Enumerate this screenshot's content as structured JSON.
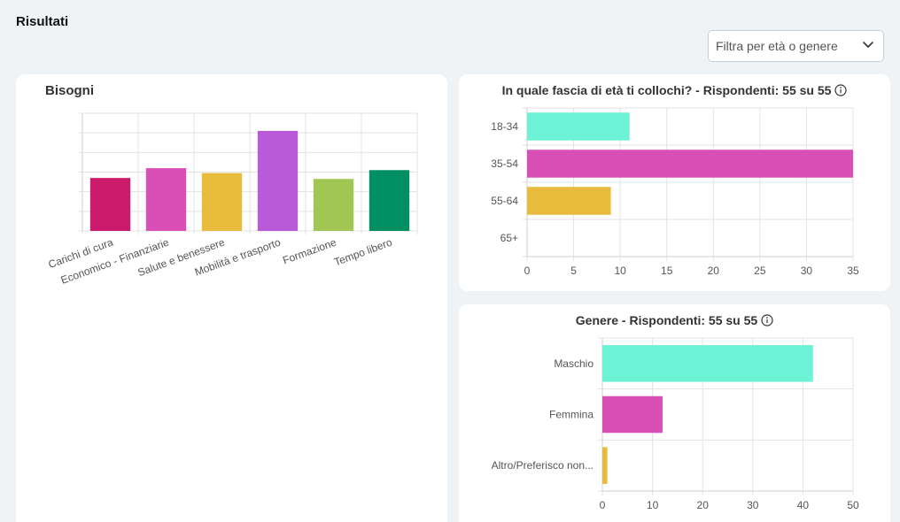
{
  "page": {
    "title": "Risultati"
  },
  "filter": {
    "placeholder": "Filtra per età o genere",
    "icon": "chevron-down-icon"
  },
  "colors": {
    "crimson": "#cc1a6c",
    "pink": "#d94fb5",
    "yellow": "#e9bb3d",
    "purple": "#b85ad9",
    "lime": "#a1c653",
    "green": "#008f60",
    "aqua": "#6cf2d4",
    "magenta": "#d94fb5"
  },
  "needs_card": {
    "title": "Bisogni"
  },
  "age_card": {
    "title": "In quale fascia di età ti collochi? - Rispondenti: 55 su 55",
    "icon": "info-icon"
  },
  "gender_card": {
    "title": "Genere - Rispondenti: 55 su 55",
    "icon": "info-icon"
  },
  "chart_data": [
    {
      "type": "bar",
      "title": "Bisogni",
      "categories": [
        "Carichi di cura",
        "Economico - Finanziarie",
        "Salute e benessere",
        "Mobilità e trasporto",
        "Formazione",
        "Tempo libero"
      ],
      "values": [
        27,
        32,
        29.5,
        51,
        26.5,
        31
      ],
      "ylim": [
        0,
        60
      ],
      "y_tick_labels_shown": false,
      "grid": true,
      "bar_colors": [
        "#cc1a6c",
        "#d94fb5",
        "#e9bb3d",
        "#b85ad9",
        "#a1c653",
        "#008f60"
      ]
    },
    {
      "type": "bar",
      "orientation": "horizontal",
      "title": "In quale fascia di età ti collochi? - Rispondenti: 55 su 55",
      "categories": [
        "18-34",
        "35-54",
        "55-64",
        "65+"
      ],
      "values": [
        11,
        35,
        9,
        0
      ],
      "xlim": [
        0,
        35
      ],
      "x_ticks": [
        0,
        5,
        10,
        15,
        20,
        25,
        30,
        35
      ],
      "grid": true,
      "bar_colors": [
        "#6cf2d4",
        "#d94fb5",
        "#e9bb3d",
        "#a1c653"
      ]
    },
    {
      "type": "bar",
      "orientation": "horizontal",
      "title": "Genere - Rispondenti: 55 su 55",
      "categories": [
        "Maschio",
        "Femmina",
        "Altro/Preferisco non..."
      ],
      "values": [
        42,
        12,
        1
      ],
      "xlim": [
        0,
        50
      ],
      "x_ticks": [
        0,
        10,
        20,
        30,
        40,
        50
      ],
      "grid": true,
      "bar_colors": [
        "#6cf2d4",
        "#d94fb5",
        "#e9bb3d"
      ]
    }
  ]
}
